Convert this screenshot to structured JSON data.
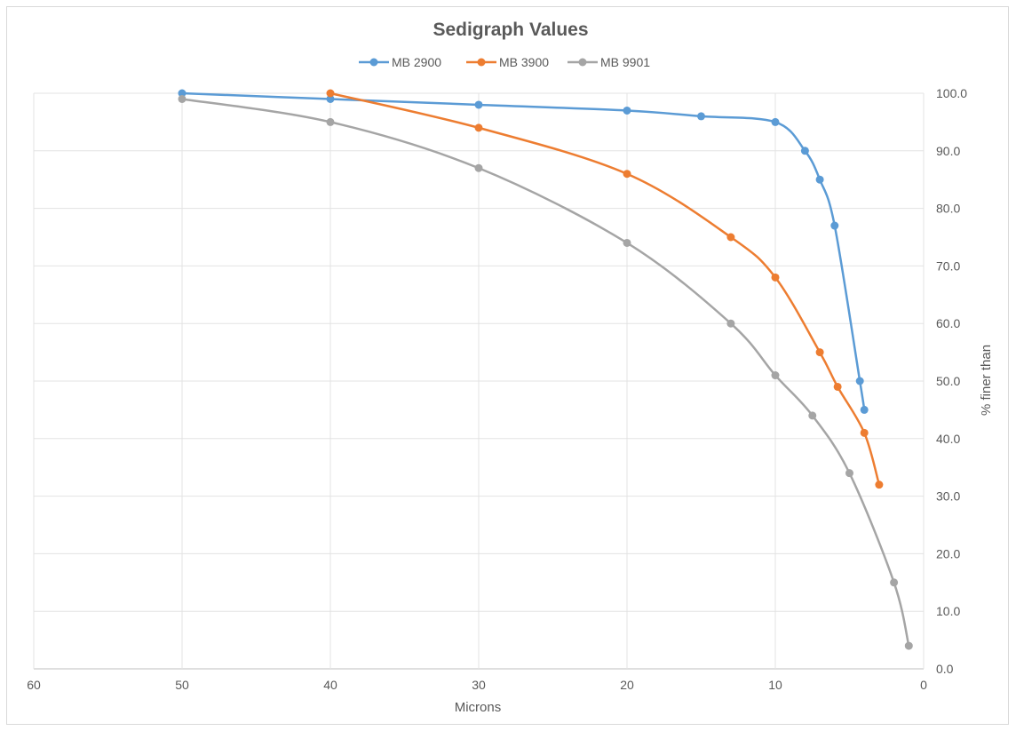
{
  "chart_data": {
    "type": "line",
    "title": "Sedigraph Values",
    "xlabel": "Microns",
    "ylabel": "% finer than",
    "x_reversed": true,
    "xlim": [
      0,
      60
    ],
    "ylim": [
      0,
      100
    ],
    "x_ticks": [
      "60",
      "50",
      "40",
      "30",
      "20",
      "10",
      "0"
    ],
    "y_ticks": [
      "0.0",
      "10.0",
      "20.0",
      "30.0",
      "40.0",
      "50.0",
      "60.0",
      "70.0",
      "80.0",
      "90.0",
      "100.0"
    ],
    "y_axis_side": "right",
    "grid": true,
    "legend_position": "top",
    "series": [
      {
        "name": "MB 2900",
        "color": "#5b9bd5",
        "points": [
          [
            50,
            100
          ],
          [
            40,
            99
          ],
          [
            30,
            98
          ],
          [
            20,
            97
          ],
          [
            15,
            96
          ],
          [
            10,
            95
          ],
          [
            8,
            90
          ],
          [
            7,
            85
          ],
          [
            6,
            77
          ],
          [
            4.3,
            50
          ],
          [
            4,
            45
          ]
        ]
      },
      {
        "name": "MB 3900",
        "color": "#ed7d31",
        "points": [
          [
            40,
            100
          ],
          [
            30,
            94
          ],
          [
            20,
            86
          ],
          [
            13,
            75
          ],
          [
            10,
            68
          ],
          [
            7,
            55
          ],
          [
            5.8,
            49
          ],
          [
            4,
            41
          ],
          [
            3,
            32
          ]
        ]
      },
      {
        "name": "MB 9901",
        "color": "#a5a5a5",
        "points": [
          [
            50,
            99
          ],
          [
            40,
            95
          ],
          [
            30,
            87
          ],
          [
            20,
            74
          ],
          [
            13,
            60
          ],
          [
            10,
            51
          ],
          [
            7.5,
            44
          ],
          [
            5,
            34
          ],
          [
            2,
            15
          ],
          [
            1,
            4
          ]
        ]
      }
    ]
  }
}
